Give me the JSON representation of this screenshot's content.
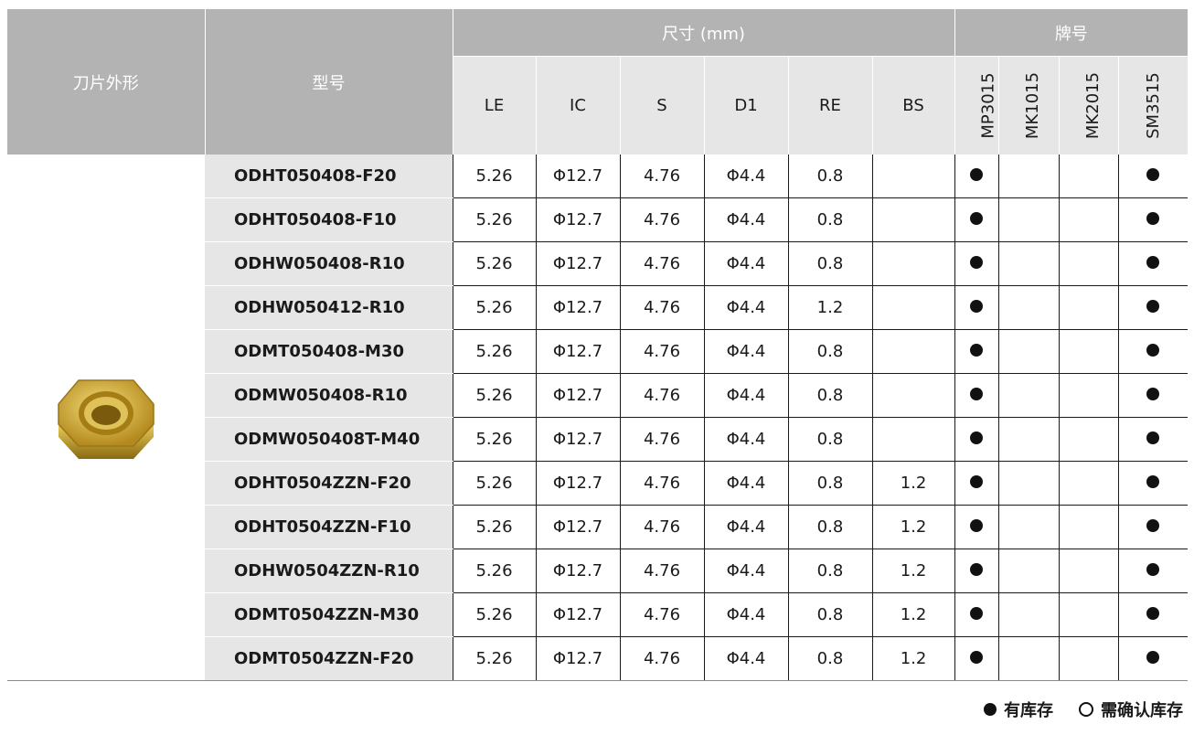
{
  "header": {
    "shape_label": "刀片外形",
    "model_label": "型号",
    "dims_group": "尺寸 (mm)",
    "grades_group": "牌号",
    "dim_columns": [
      "LE",
      "IC",
      "S",
      "D1",
      "RE",
      "BS"
    ],
    "grade_columns": [
      "MP3015",
      "MK1015",
      "MK2015",
      "SM3515"
    ]
  },
  "rows": [
    {
      "model": "ODHT050408-F20",
      "dims": [
        "5.26",
        "Φ12.7",
        "4.76",
        "Φ4.4",
        "0.8",
        ""
      ],
      "grades": [
        true,
        false,
        false,
        true
      ]
    },
    {
      "model": "ODHT050408-F10",
      "dims": [
        "5.26",
        "Φ12.7",
        "4.76",
        "Φ4.4",
        "0.8",
        ""
      ],
      "grades": [
        true,
        false,
        false,
        true
      ]
    },
    {
      "model": "ODHW050408-R10",
      "dims": [
        "5.26",
        "Φ12.7",
        "4.76",
        "Φ4.4",
        "0.8",
        ""
      ],
      "grades": [
        true,
        false,
        false,
        true
      ]
    },
    {
      "model": "ODHW050412-R10",
      "dims": [
        "5.26",
        "Φ12.7",
        "4.76",
        "Φ4.4",
        "1.2",
        ""
      ],
      "grades": [
        true,
        false,
        false,
        true
      ]
    },
    {
      "model": "ODMT050408-M30",
      "dims": [
        "5.26",
        "Φ12.7",
        "4.76",
        "Φ4.4",
        "0.8",
        ""
      ],
      "grades": [
        true,
        false,
        false,
        true
      ]
    },
    {
      "model": "ODMW050408-R10",
      "dims": [
        "5.26",
        "Φ12.7",
        "4.76",
        "Φ4.4",
        "0.8",
        ""
      ],
      "grades": [
        true,
        false,
        false,
        true
      ]
    },
    {
      "model": "ODMW050408T-M40",
      "dims": [
        "5.26",
        "Φ12.7",
        "4.76",
        "Φ4.4",
        "0.8",
        ""
      ],
      "grades": [
        true,
        false,
        false,
        true
      ]
    },
    {
      "model": "ODHT0504ZZN-F20",
      "dims": [
        "5.26",
        "Φ12.7",
        "4.76",
        "Φ4.4",
        "0.8",
        "1.2"
      ],
      "grades": [
        true,
        false,
        false,
        true
      ]
    },
    {
      "model": "ODHT0504ZZN-F10",
      "dims": [
        "5.26",
        "Φ12.7",
        "4.76",
        "Φ4.4",
        "0.8",
        "1.2"
      ],
      "grades": [
        true,
        false,
        false,
        true
      ]
    },
    {
      "model": "ODHW0504ZZN-R10",
      "dims": [
        "5.26",
        "Φ12.7",
        "4.76",
        "Φ4.4",
        "0.8",
        "1.2"
      ],
      "grades": [
        true,
        false,
        false,
        true
      ]
    },
    {
      "model": "ODMT0504ZZN-M30",
      "dims": [
        "5.26",
        "Φ12.7",
        "4.76",
        "Φ4.4",
        "0.8",
        "1.2"
      ],
      "grades": [
        true,
        false,
        false,
        true
      ]
    },
    {
      "model": "ODMT0504ZZN-F20",
      "dims": [
        "5.26",
        "Φ12.7",
        "4.76",
        "Φ4.4",
        "0.8",
        "1.2"
      ],
      "grades": [
        true,
        false,
        false,
        true
      ]
    }
  ],
  "legend": {
    "in_stock": "有库存",
    "confirm_stock": "需确认库存"
  },
  "colors": {
    "header_bg": "#b3b3b3",
    "subheader_bg": "#e6e6e6",
    "insert_gold": "#c9a227"
  }
}
